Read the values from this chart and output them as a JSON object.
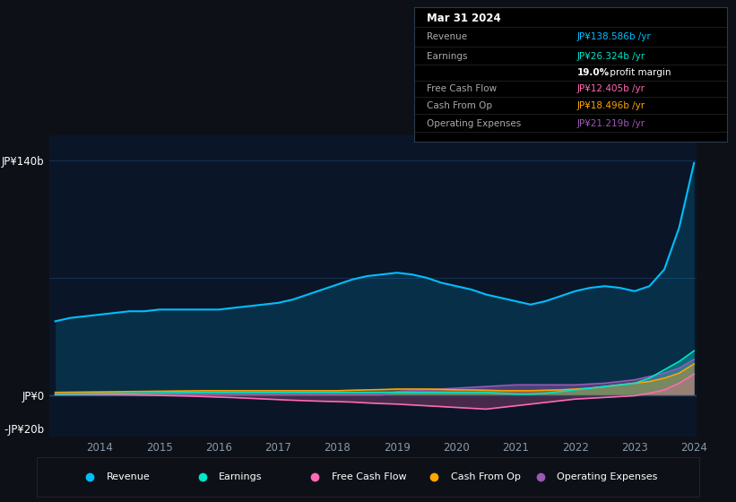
{
  "background_color": "#0d1117",
  "plot_bg_color": "#0a1628",
  "grid_color": "#1e3a5f",
  "text_color": "#8899aa",
  "ylim": [
    -25,
    155
  ],
  "years": [
    2013.25,
    2013.5,
    2013.75,
    2014.0,
    2014.25,
    2014.5,
    2014.75,
    2015.0,
    2015.25,
    2015.5,
    2015.75,
    2016.0,
    2016.25,
    2016.5,
    2016.75,
    2017.0,
    2017.25,
    2017.5,
    2017.75,
    2018.0,
    2018.25,
    2018.5,
    2018.75,
    2019.0,
    2019.25,
    2019.5,
    2019.75,
    2020.0,
    2020.25,
    2020.5,
    2020.75,
    2021.0,
    2021.25,
    2021.5,
    2021.75,
    2022.0,
    2022.25,
    2022.5,
    2022.75,
    2023.0,
    2023.25,
    2023.5,
    2023.75,
    2024.0
  ],
  "revenue": [
    44,
    46,
    47,
    48,
    49,
    50,
    50,
    51,
    51,
    51,
    51,
    51,
    52,
    53,
    54,
    55,
    57,
    60,
    63,
    66,
    69,
    71,
    72,
    73,
    72,
    70,
    67,
    65,
    63,
    60,
    58,
    56,
    54,
    56,
    59,
    62,
    64,
    65,
    64,
    62,
    65,
    75,
    100,
    138.586
  ],
  "earnings": [
    0.5,
    0.6,
    0.7,
    0.8,
    0.9,
    1.0,
    1.1,
    1.2,
    1.3,
    1.4,
    1.5,
    1.5,
    1.5,
    1.5,
    1.5,
    1.5,
    1.5,
    1.5,
    1.5,
    1.5,
    1.5,
    1.5,
    1.5,
    1.5,
    1.5,
    1.5,
    1.5,
    1.5,
    1.5,
    1.5,
    1.0,
    0.5,
    0.5,
    1.0,
    2.0,
    3.0,
    4.0,
    5.0,
    6.0,
    7.0,
    10.0,
    15.0,
    20.0,
    26.324
  ],
  "free_cash_flow": [
    0.3,
    0.3,
    0.3,
    0.3,
    0.2,
    0.1,
    -0.1,
    -0.3,
    -0.5,
    -0.7,
    -1.0,
    -1.3,
    -1.6,
    -2.0,
    -2.4,
    -2.8,
    -3.2,
    -3.5,
    -3.8,
    -4.0,
    -4.3,
    -4.8,
    -5.2,
    -5.5,
    -6.0,
    -6.5,
    -7.0,
    -7.5,
    -8.0,
    -8.5,
    -7.5,
    -6.5,
    -5.5,
    -4.5,
    -3.5,
    -2.5,
    -2.0,
    -1.5,
    -1.0,
    -0.5,
    1.0,
    3.0,
    7.0,
    12.405
  ],
  "cash_from_op": [
    1.5,
    1.6,
    1.7,
    1.8,
    1.9,
    2.0,
    2.1,
    2.2,
    2.3,
    2.4,
    2.5,
    2.5,
    2.5,
    2.5,
    2.5,
    2.5,
    2.5,
    2.5,
    2.5,
    2.5,
    2.8,
    3.0,
    3.2,
    3.5,
    3.5,
    3.5,
    3.3,
    3.0,
    3.0,
    2.8,
    2.5,
    2.5,
    2.5,
    2.8,
    3.0,
    3.5,
    4.0,
    5.0,
    6.0,
    7.0,
    8.0,
    10.0,
    13.0,
    18.496
  ],
  "operating_expenses": [
    0.0,
    0.0,
    0.0,
    0.0,
    0.0,
    0.0,
    0.0,
    0.0,
    0.0,
    0.0,
    0.0,
    0.0,
    0.0,
    0.0,
    0.0,
    0.0,
    0.0,
    0.0,
    0.0,
    0.0,
    0.0,
    0.0,
    0.0,
    2.0,
    2.5,
    3.0,
    3.5,
    4.0,
    4.5,
    5.0,
    5.5,
    6.0,
    6.0,
    6.0,
    6.0,
    6.0,
    6.5,
    7.0,
    8.0,
    9.0,
    11.0,
    13.0,
    16.0,
    21.219
  ],
  "revenue_color": "#00bfff",
  "earnings_color": "#00e5cc",
  "free_cash_flow_color": "#ff69b4",
  "cash_from_op_color": "#ffa500",
  "operating_expenses_color": "#9b59b6",
  "revenue_value_color": "#00bfff",
  "earnings_value_color": "#00e5cc",
  "fcf_value_color": "#ff69b4",
  "cfop_value_color": "#ffa500",
  "opex_value_color": "#9b59b6",
  "xtick_years": [
    2014,
    2015,
    2016,
    2017,
    2018,
    2019,
    2020,
    2021,
    2022,
    2023,
    2024
  ],
  "tooltip_title": "Mar 31 2024",
  "tooltip_rows": [
    {
      "label": "Revenue",
      "value": "JP¥138.586b /yr",
      "value_color": "#00bfff"
    },
    {
      "label": "Earnings",
      "value": "JP¥26.324b /yr",
      "value_color": "#00e5cc"
    },
    {
      "label": "",
      "value": "19.0% profit margin",
      "value_color": "#ffffff"
    },
    {
      "label": "Free Cash Flow",
      "value": "JP¥12.405b /yr",
      "value_color": "#ff69b4"
    },
    {
      "label": "Cash From Op",
      "value": "JP¥18.496b /yr",
      "value_color": "#ffa500"
    },
    {
      "label": "Operating Expenses",
      "value": "JP¥21.219b /yr",
      "value_color": "#9b59b6"
    }
  ],
  "legend_items": [
    {
      "label": "Revenue",
      "color": "#00bfff"
    },
    {
      "label": "Earnings",
      "color": "#00e5cc"
    },
    {
      "label": "Free Cash Flow",
      "color": "#ff69b4"
    },
    {
      "label": "Cash From Op",
      "color": "#ffa500"
    },
    {
      "label": "Operating Expenses",
      "color": "#9b59b6"
    }
  ]
}
